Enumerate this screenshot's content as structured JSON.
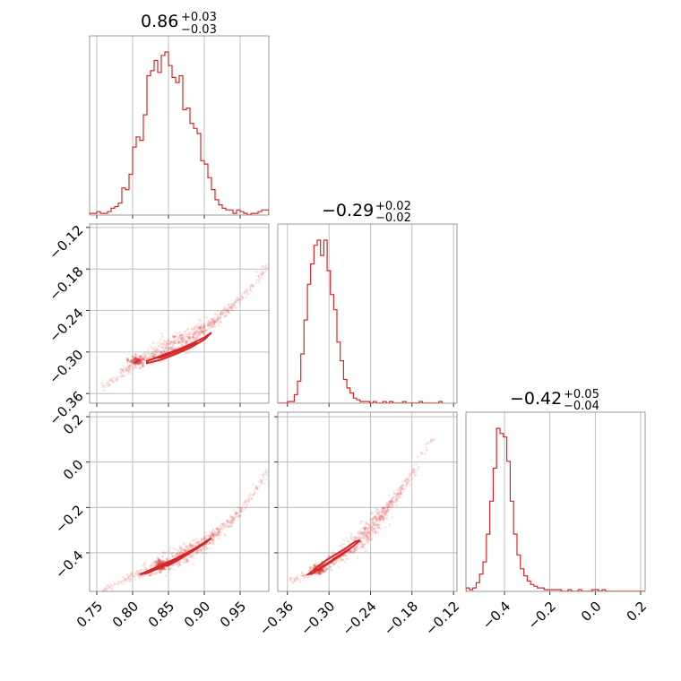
{
  "chart_data": {
    "type": "corner",
    "color": "#d62728",
    "grid": true,
    "parameters": [
      {
        "title": {
          "median": "0.86",
          "plus": "+0.03",
          "minus": "−0.03"
        },
        "range": [
          0.74,
          0.99
        ],
        "ticks": [
          0.75,
          0.8,
          0.85,
          0.9,
          0.95
        ],
        "tick_labels": [
          "0.75",
          "0.80",
          "0.85",
          "0.90",
          "0.95"
        ]
      },
      {
        "title": {
          "median": "−0.29",
          "plus": "+0.02",
          "minus": "−0.02"
        },
        "range": [
          -0.374,
          -0.115
        ],
        "ticks": [
          -0.36,
          -0.3,
          -0.24,
          -0.18,
          -0.12
        ],
        "tick_labels": [
          "−0.36",
          "−0.30",
          "−0.24",
          "−0.18",
          "−0.12"
        ]
      },
      {
        "title": {
          "median": "−0.42",
          "plus": "+0.05",
          "minus": "−0.04"
        },
        "range": [
          -0.57,
          0.22
        ],
        "ticks": [
          -0.4,
          -0.2,
          0.0,
          0.2
        ],
        "tick_labels": [
          "−0.4",
          "−0.2",
          "0.0",
          "0.2"
        ]
      }
    ],
    "histograms": [
      {
        "param": 0,
        "bin_edges": [
          0.74,
          0.745,
          0.75,
          0.755,
          0.76,
          0.765,
          0.77,
          0.775,
          0.78,
          0.785,
          0.79,
          0.795,
          0.8,
          0.805,
          0.81,
          0.815,
          0.82,
          0.825,
          0.83,
          0.835,
          0.84,
          0.845,
          0.85,
          0.855,
          0.86,
          0.865,
          0.87,
          0.875,
          0.88,
          0.885,
          0.89,
          0.895,
          0.9,
          0.905,
          0.91,
          0.915,
          0.92,
          0.925,
          0.93,
          0.935,
          0.94,
          0.945,
          0.95,
          0.955,
          0.96,
          0.965,
          0.97,
          0.975,
          0.98,
          0.985,
          0.99
        ],
        "counts": [
          1,
          1,
          2,
          1,
          1,
          2,
          4,
          5,
          7,
          16,
          15,
          24,
          40,
          46,
          44,
          59,
          82,
          85,
          91,
          84,
          94,
          96,
          88,
          81,
          78,
          82,
          62,
          63,
          54,
          51,
          48,
          32,
          30,
          22,
          15,
          9,
          6,
          4,
          3,
          3,
          1,
          3,
          2,
          1,
          0,
          1,
          1,
          2,
          3,
          3
        ]
      },
      {
        "param": 1,
        "bin_edges": [
          -0.374,
          -0.3692,
          -0.3645,
          -0.3597,
          -0.355,
          -0.3502,
          -0.3455,
          -0.3407,
          -0.336,
          -0.3312,
          -0.3265,
          -0.3217,
          -0.317,
          -0.3122,
          -0.3075,
          -0.3027,
          -0.298,
          -0.2932,
          -0.2885,
          -0.2837,
          -0.279,
          -0.2742,
          -0.2695,
          -0.2647,
          -0.26,
          -0.2552,
          -0.2505,
          -0.2457,
          -0.241,
          -0.2362,
          -0.2315,
          -0.2267,
          -0.222,
          -0.2172,
          -0.2125,
          -0.2077,
          -0.203,
          -0.1982,
          -0.1935,
          -0.1887,
          -0.184,
          -0.1792,
          -0.1745,
          -0.1697,
          -0.165,
          -0.1602,
          -0.1555,
          -0.1507,
          -0.146,
          -0.1412,
          -0.1365
        ],
        "counts": [
          0,
          0,
          0,
          1,
          1,
          5,
          13,
          29,
          49,
          70,
          82,
          93,
          96,
          87,
          96,
          78,
          64,
          55,
          36,
          25,
          14,
          9,
          6,
          3,
          2,
          1,
          1,
          1,
          0,
          1,
          0,
          0,
          1,
          0,
          1,
          0,
          0,
          0,
          1,
          0,
          0,
          0,
          0,
          1,
          0,
          0,
          0,
          0,
          0,
          1
        ]
      },
      {
        "param": 2,
        "bin_edges": [
          -0.57,
          -0.555,
          -0.54,
          -0.525,
          -0.51,
          -0.495,
          -0.48,
          -0.465,
          -0.45,
          -0.435,
          -0.42,
          -0.405,
          -0.39,
          -0.375,
          -0.36,
          -0.345,
          -0.33,
          -0.315,
          -0.3,
          -0.285,
          -0.27,
          -0.255,
          -0.24,
          -0.225,
          -0.21,
          -0.195,
          -0.18,
          -0.165,
          -0.15,
          -0.135,
          -0.12,
          -0.105,
          -0.09,
          -0.075,
          -0.06,
          -0.045,
          -0.03,
          -0.015,
          0.0,
          0.015,
          0.03,
          0.045,
          0.06,
          0.075,
          0.09,
          0.105,
          0.12,
          0.135,
          0.15,
          0.165,
          0.18,
          0.195,
          0.21,
          0.22
        ],
        "counts": [
          2,
          1,
          2,
          5,
          10,
          17,
          33,
          52,
          71,
          94,
          91,
          89,
          75,
          52,
          33,
          21,
          13,
          9,
          6,
          4,
          3,
          2,
          2,
          1,
          1,
          1,
          1,
          1,
          0,
          0,
          1,
          0,
          0,
          1,
          0,
          0,
          0,
          1,
          1,
          0,
          1,
          0,
          0,
          0,
          0,
          0,
          0,
          0,
          0,
          0,
          0,
          0,
          0
        ]
      }
    ],
    "pairs": [
      {
        "x_param": 0,
        "y_param": 1,
        "ridge": [
          [
            0.76,
            -0.352
          ],
          [
            0.78,
            -0.333
          ],
          [
            0.8,
            -0.319
          ],
          [
            0.82,
            -0.307
          ],
          [
            0.84,
            -0.298
          ],
          [
            0.86,
            -0.288
          ],
          [
            0.88,
            -0.278
          ],
          [
            0.9,
            -0.266
          ],
          [
            0.92,
            -0.251
          ],
          [
            0.94,
            -0.233
          ],
          [
            0.96,
            -0.211
          ],
          [
            0.98,
            -0.186
          ],
          [
            0.99,
            -0.171
          ]
        ],
        "core": [
          0.806,
          -0.312
        ],
        "contours": [
          [
            [
              0.82,
              -0.313
            ],
            [
              0.84,
              -0.306
            ],
            [
              0.86,
              -0.298
            ],
            [
              0.88,
              -0.289
            ],
            [
              0.9,
              -0.279
            ],
            [
              0.91,
              -0.272
            ],
            [
              0.9,
              -0.282
            ],
            [
              0.88,
              -0.294
            ],
            [
              0.86,
              -0.303
            ],
            [
              0.84,
              -0.311
            ],
            [
              0.82,
              -0.316
            ]
          ],
          [
            [
              0.83,
              -0.309
            ],
            [
              0.85,
              -0.302
            ],
            [
              0.87,
              -0.295
            ],
            [
              0.89,
              -0.286
            ],
            [
              0.88,
              -0.291
            ],
            [
              0.86,
              -0.3
            ],
            [
              0.84,
              -0.308
            ]
          ],
          [
            [
              0.84,
              -0.305
            ],
            [
              0.86,
              -0.298
            ],
            [
              0.875,
              -0.293
            ],
            [
              0.865,
              -0.297
            ],
            [
              0.85,
              -0.303
            ]
          ]
        ]
      },
      {
        "x_param": 0,
        "y_param": 2,
        "ridge": [
          [
            0.76,
            -0.562
          ],
          [
            0.78,
            -0.53
          ],
          [
            0.8,
            -0.506
          ],
          [
            0.82,
            -0.478
          ],
          [
            0.84,
            -0.453
          ],
          [
            0.86,
            -0.425
          ],
          [
            0.88,
            -0.393
          ],
          [
            0.9,
            -0.354
          ],
          [
            0.92,
            -0.308
          ],
          [
            0.94,
            -0.25
          ],
          [
            0.96,
            -0.18
          ],
          [
            0.98,
            -0.085
          ],
          [
            0.99,
            -0.03
          ]
        ],
        "core": [
          0.84,
          -0.455
        ],
        "contours": [
          [
            [
              0.81,
              -0.495
            ],
            [
              0.83,
              -0.468
            ],
            [
              0.85,
              -0.44
            ],
            [
              0.87,
              -0.41
            ],
            [
              0.89,
              -0.375
            ],
            [
              0.91,
              -0.335
            ],
            [
              0.9,
              -0.36
            ],
            [
              0.88,
              -0.4
            ],
            [
              0.86,
              -0.432
            ],
            [
              0.84,
              -0.462
            ],
            [
              0.82,
              -0.49
            ]
          ],
          [
            [
              0.83,
              -0.472
            ],
            [
              0.85,
              -0.444
            ],
            [
              0.87,
              -0.413
            ],
            [
              0.88,
              -0.398
            ],
            [
              0.87,
              -0.419
            ],
            [
              0.85,
              -0.45
            ],
            [
              0.835,
              -0.47
            ]
          ],
          [
            [
              0.845,
              -0.457
            ],
            [
              0.86,
              -0.435
            ],
            [
              0.87,
              -0.42
            ],
            [
              0.86,
              -0.438
            ],
            [
              0.85,
              -0.455
            ]
          ]
        ]
      },
      {
        "x_param": 1,
        "y_param": 2,
        "ridge": [
          [
            -0.355,
            -0.52
          ],
          [
            -0.34,
            -0.506
          ],
          [
            -0.32,
            -0.48
          ],
          [
            -0.3,
            -0.445
          ],
          [
            -0.28,
            -0.405
          ],
          [
            -0.26,
            -0.355
          ],
          [
            -0.24,
            -0.292
          ],
          [
            -0.22,
            -0.215
          ],
          [
            -0.2,
            -0.14
          ],
          [
            -0.18,
            -0.055
          ],
          [
            -0.165,
            0.03
          ],
          [
            -0.15,
            0.11
          ]
        ],
        "core": [
          -0.315,
          -0.475
        ],
        "contours": [
          [
            [
              -0.325,
              -0.492
            ],
            [
              -0.31,
              -0.465
            ],
            [
              -0.295,
              -0.435
            ],
            [
              -0.28,
              -0.405
            ],
            [
              -0.265,
              -0.37
            ],
            [
              -0.255,
              -0.345
            ],
            [
              -0.262,
              -0.35
            ],
            [
              -0.278,
              -0.385
            ],
            [
              -0.295,
              -0.415
            ],
            [
              -0.31,
              -0.445
            ],
            [
              -0.322,
              -0.475
            ],
            [
              -0.33,
              -0.495
            ]
          ],
          [
            [
              -0.318,
              -0.478
            ],
            [
              -0.305,
              -0.455
            ],
            [
              -0.29,
              -0.425
            ],
            [
              -0.275,
              -0.395
            ],
            [
              -0.27,
              -0.382
            ],
            [
              -0.28,
              -0.4
            ],
            [
              -0.295,
              -0.432
            ],
            [
              -0.31,
              -0.462
            ],
            [
              -0.322,
              -0.482
            ]
          ],
          [
            [
              -0.31,
              -0.462
            ],
            [
              -0.298,
              -0.44
            ],
            [
              -0.285,
              -0.414
            ],
            [
              -0.29,
              -0.42
            ],
            [
              -0.302,
              -0.448
            ],
            [
              -0.314,
              -0.47
            ]
          ]
        ]
      }
    ]
  }
}
